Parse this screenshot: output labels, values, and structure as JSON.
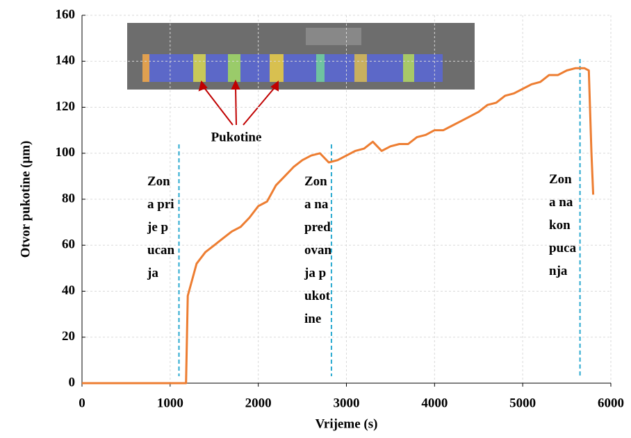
{
  "chart_data": {
    "type": "line",
    "x_label": "Vrijeme (s)",
    "y_label": "Otvor pukotine (μm)",
    "x": [
      0,
      1000,
      1180,
      1200,
      1300,
      1400,
      1500,
      1600,
      1700,
      1800,
      1900,
      2000,
      2100,
      2200,
      2300,
      2400,
      2500,
      2600,
      2700,
      2800,
      2900,
      3000,
      3100,
      3200,
      3300,
      3400,
      3500,
      3600,
      3700,
      3800,
      3900,
      4000,
      4100,
      4200,
      4300,
      4400,
      4500,
      4600,
      4700,
      4800,
      4900,
      5000,
      5100,
      5200,
      5300,
      5400,
      5500,
      5600,
      5700,
      5750,
      5780,
      5800
    ],
    "values": [
      0,
      0,
      0,
      38,
      52,
      57,
      60,
      63,
      66,
      68,
      72,
      77,
      79,
      86,
      90,
      94,
      97,
      99,
      100,
      96,
      97,
      99,
      101,
      102,
      105,
      101,
      103,
      104,
      104,
      107,
      108,
      110,
      110,
      112,
      114,
      116,
      118,
      121,
      122,
      125,
      126,
      128,
      130,
      131,
      134,
      134,
      136,
      137,
      137,
      136,
      100,
      82
    ],
    "color": "#ed7d31",
    "xlim": [
      0,
      6000
    ],
    "xticks": [
      0,
      1000,
      2000,
      3000,
      4000,
      5000,
      6000
    ],
    "ylim": [
      0,
      160
    ],
    "yticks": [
      0,
      20,
      40,
      60,
      80,
      100,
      120,
      140,
      160
    ],
    "grid": true,
    "zone_lines": [
      1100,
      2830,
      5650
    ],
    "zone_labels": [
      "Zona prije pucanja",
      "Zona napredovanja pukotine",
      "Zona nakon pucanja"
    ],
    "inset_label": "Pukotine"
  }
}
